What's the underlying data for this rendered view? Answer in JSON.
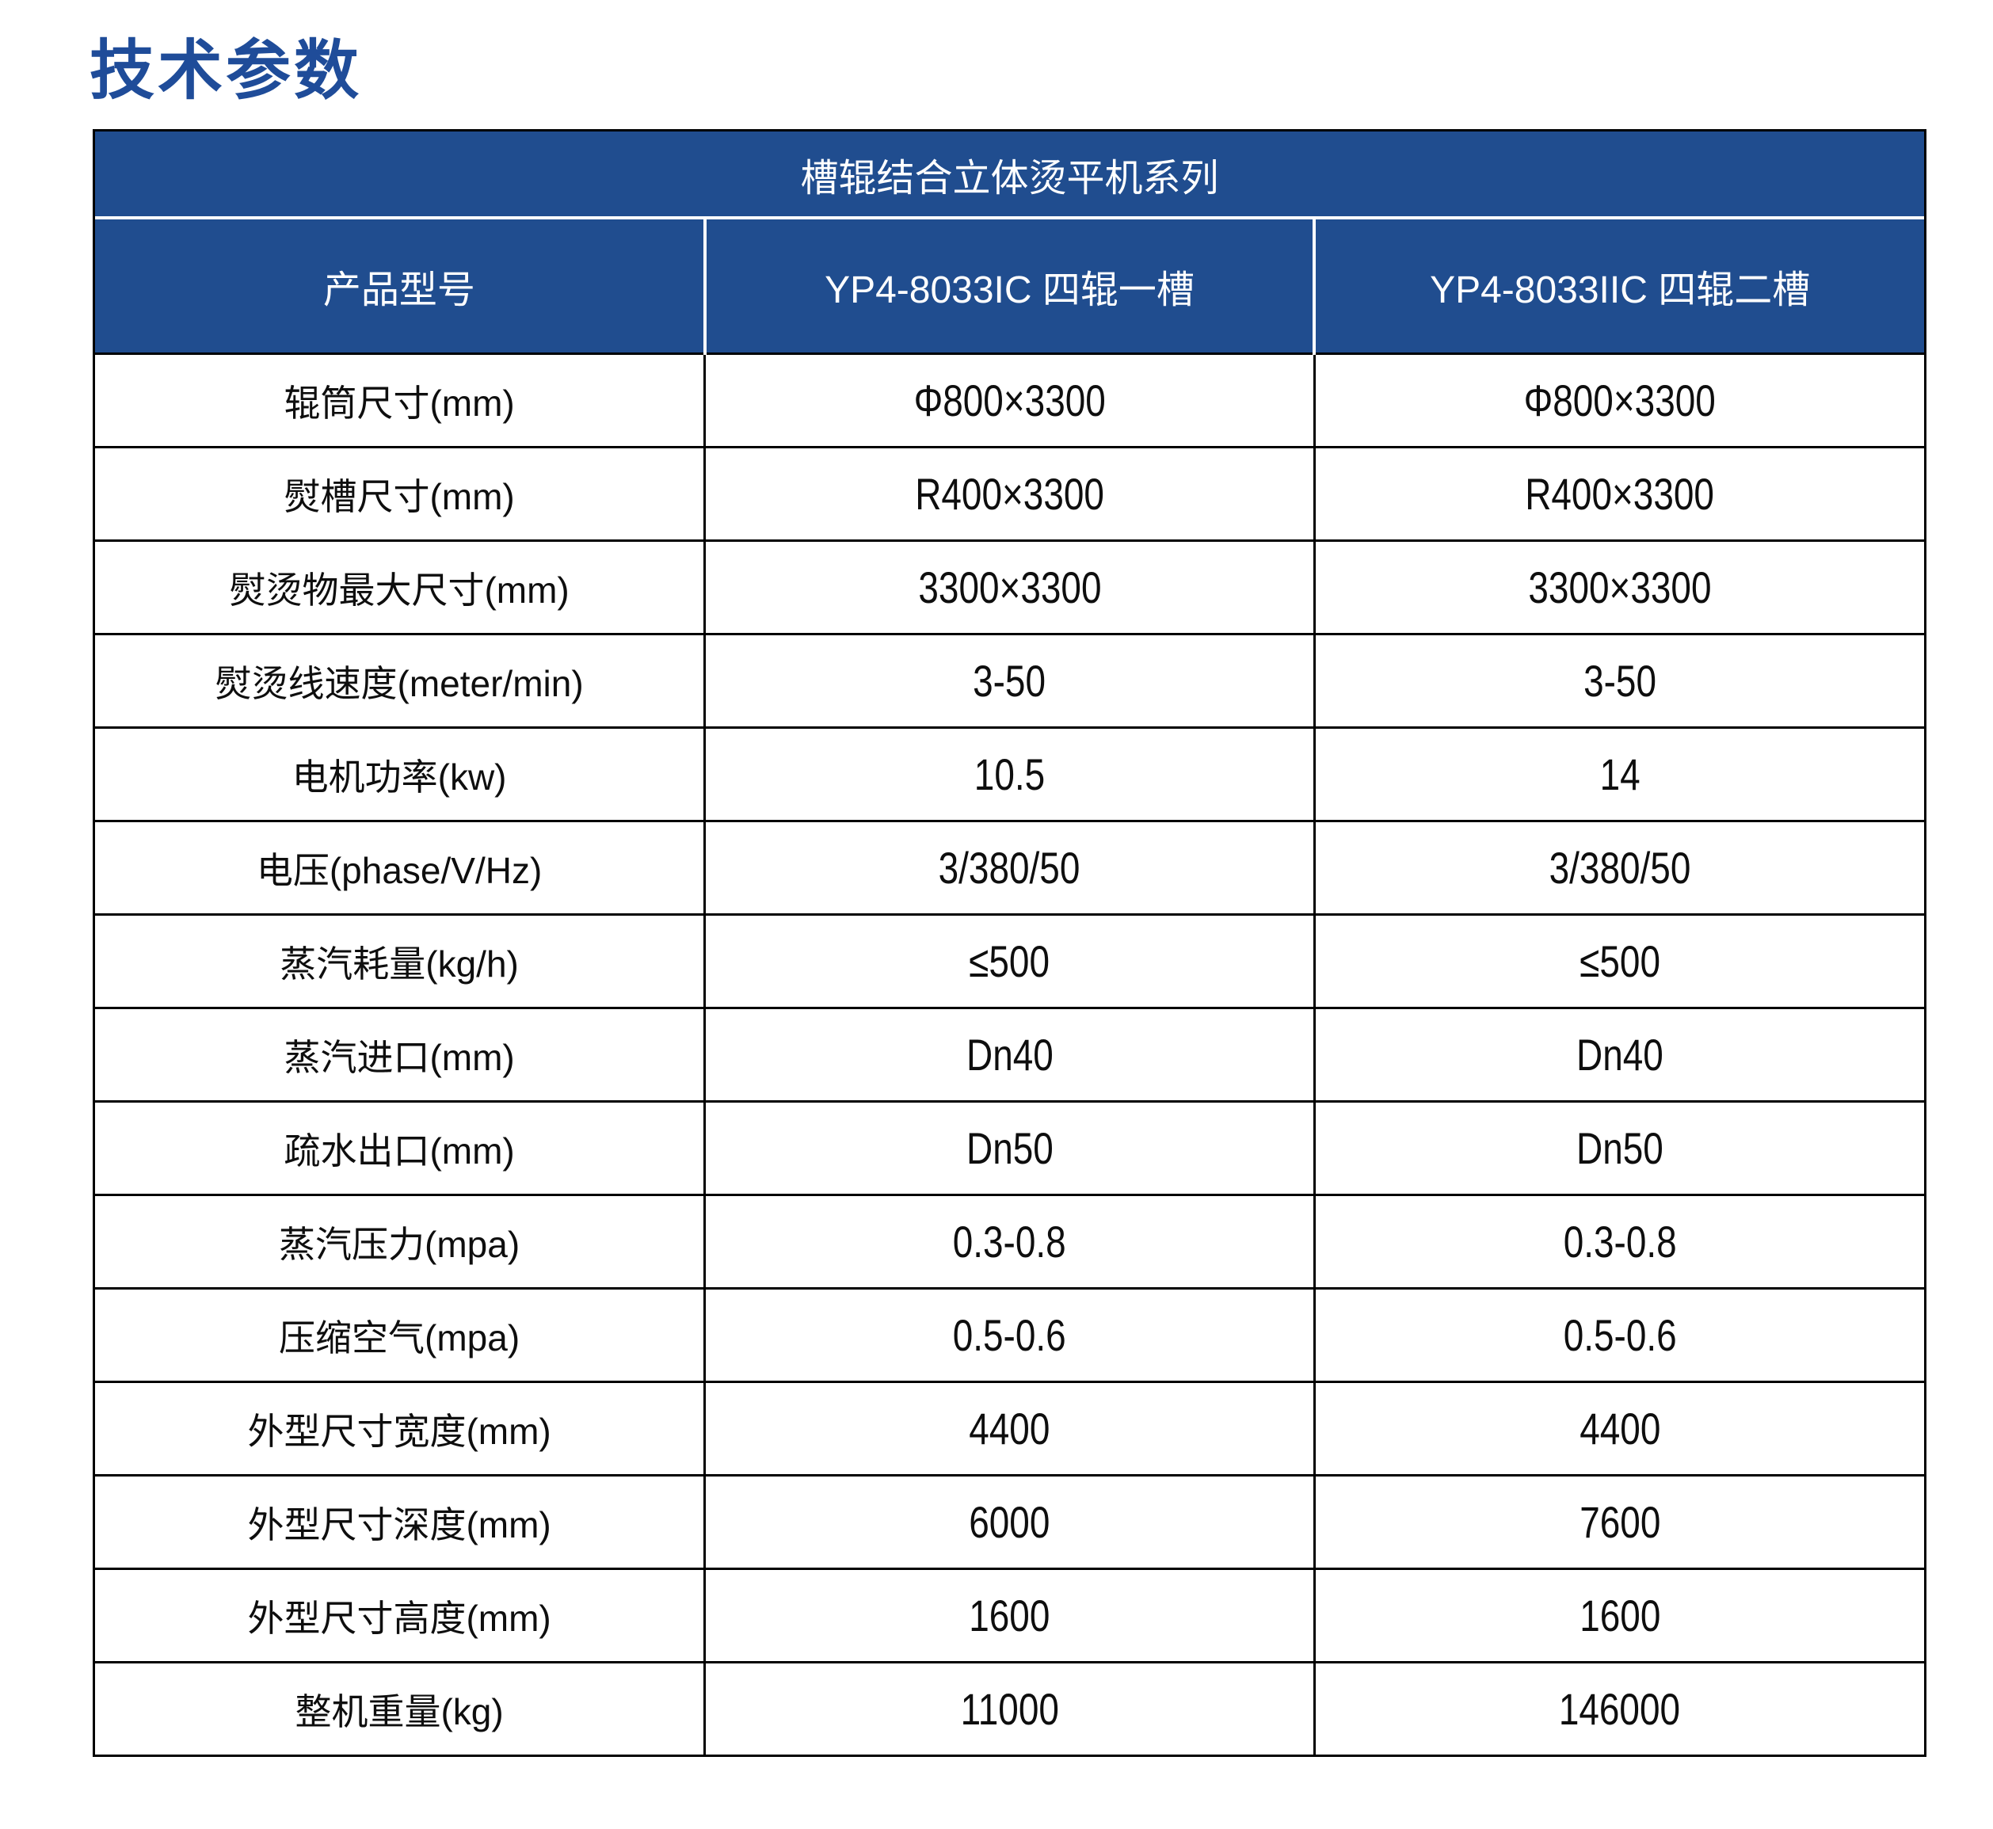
{
  "page_title": "技术参数",
  "colors": {
    "header_blue": "#204d8f",
    "title_blue": "#1f4c99",
    "border_black": "#000000",
    "body_text": "#0e0e0e",
    "background": "#ffffff"
  },
  "table": {
    "series_header": "槽辊结合立体烫平机系列",
    "columns": [
      "产品型号",
      "YP4-8033IC 四辊一槽",
      "YP4-8033IIC 四辊二槽"
    ],
    "rows": [
      {
        "label": "辊筒尺寸(mm)",
        "v1": "Φ800×3300",
        "v2": "Φ800×3300"
      },
      {
        "label": "熨槽尺寸(mm)",
        "v1": "R400×3300",
        "v2": "R400×3300"
      },
      {
        "label": "熨烫物最大尺寸(mm)",
        "v1": "3300×3300",
        "v2": "3300×3300"
      },
      {
        "label": "熨烫线速度(meter/min)",
        "v1": "3-50",
        "v2": "3-50"
      },
      {
        "label": "电机功率(kw)",
        "v1": "10.5",
        "v2": "14"
      },
      {
        "label": "电压(phase/V/Hz)",
        "v1": "3/380/50",
        "v2": "3/380/50"
      },
      {
        "label": "蒸汽耗量(kg/h)",
        "v1": "≤500",
        "v2": "≤500"
      },
      {
        "label": "蒸汽进口(mm)",
        "v1": "Dn40",
        "v2": "Dn40"
      },
      {
        "label": "疏水出口(mm)",
        "v1": "Dn50",
        "v2": "Dn50"
      },
      {
        "label": "蒸汽压力(mpa)",
        "v1": "0.3-0.8",
        "v2": "0.3-0.8"
      },
      {
        "label": "压缩空气(mpa)",
        "v1": "0.5-0.6",
        "v2": "0.5-0.6"
      },
      {
        "label": "外型尺寸宽度(mm)",
        "v1": "4400",
        "v2": "4400"
      },
      {
        "label": "外型尺寸深度(mm)",
        "v1": "6000",
        "v2": "7600"
      },
      {
        "label": "外型尺寸高度(mm)",
        "v1": "1600",
        "v2": "1600"
      },
      {
        "label": "整机重量(kg)",
        "v1": "11000",
        "v2": "146000"
      }
    ]
  }
}
